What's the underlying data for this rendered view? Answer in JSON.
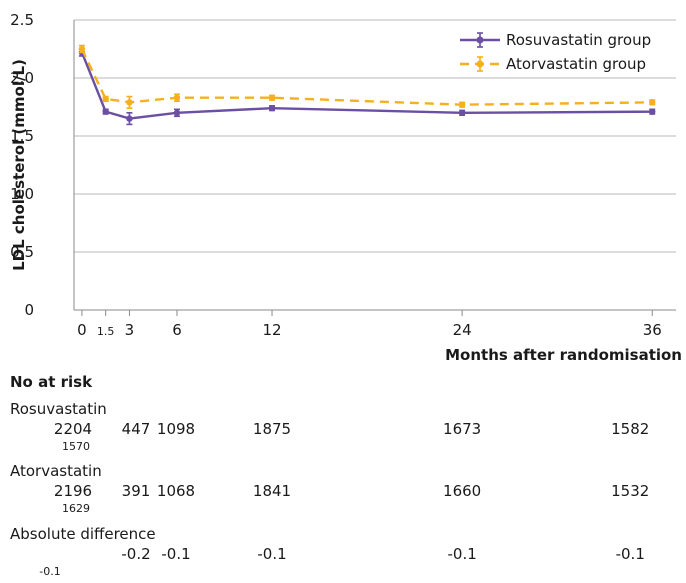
{
  "chart_data": {
    "type": "line",
    "ylabel": "LDL cholesterol (mmol/L)",
    "xlabel": "Months after randomisation",
    "ylim": [
      0,
      2.5
    ],
    "yticks": [
      "0",
      "0.5",
      "1.0",
      "1.5",
      "2.0",
      "2.5"
    ],
    "xticks": [
      "0",
      "1.5",
      "3",
      "6",
      "12",
      "24",
      "36"
    ],
    "grid": "horizontal",
    "legend_position": "top-right",
    "series": [
      {
        "name": "Rosuvastatin group",
        "color": "#6a4fa3",
        "dash": "solid",
        "x": [
          0,
          1.5,
          3,
          6,
          12,
          24,
          36
        ],
        "y": [
          2.22,
          1.71,
          1.65,
          1.7,
          1.74,
          1.7,
          1.71
        ],
        "err": [
          0.03,
          0.02,
          0.05,
          0.03,
          0.02,
          0.02,
          0.02
        ]
      },
      {
        "name": "Atorvastatin group",
        "color": "#f5b01e",
        "dash": "dashed",
        "x": [
          0,
          1.5,
          3,
          6,
          12,
          24,
          36
        ],
        "y": [
          2.25,
          1.82,
          1.79,
          1.83,
          1.83,
          1.77,
          1.79
        ],
        "err": [
          0.03,
          0.02,
          0.05,
          0.03,
          0.02,
          0.02,
          0.02
        ]
      }
    ]
  },
  "risk_table": {
    "heading": "No at risk",
    "rows": [
      {
        "label": "Rosuvastatin",
        "values": [
          "2204",
          "1570",
          "447",
          "1098",
          "1875",
          "1673",
          "1582"
        ]
      },
      {
        "label": "Atorvastatin",
        "values": [
          "2196",
          "1629",
          "391",
          "1068",
          "1841",
          "1660",
          "1532"
        ]
      },
      {
        "label": "Absolute difference",
        "values": [
          "",
          "-0.1",
          "-0.2",
          "-0.1",
          "-0.1",
          "-0.1",
          "-0.1"
        ]
      }
    ]
  }
}
